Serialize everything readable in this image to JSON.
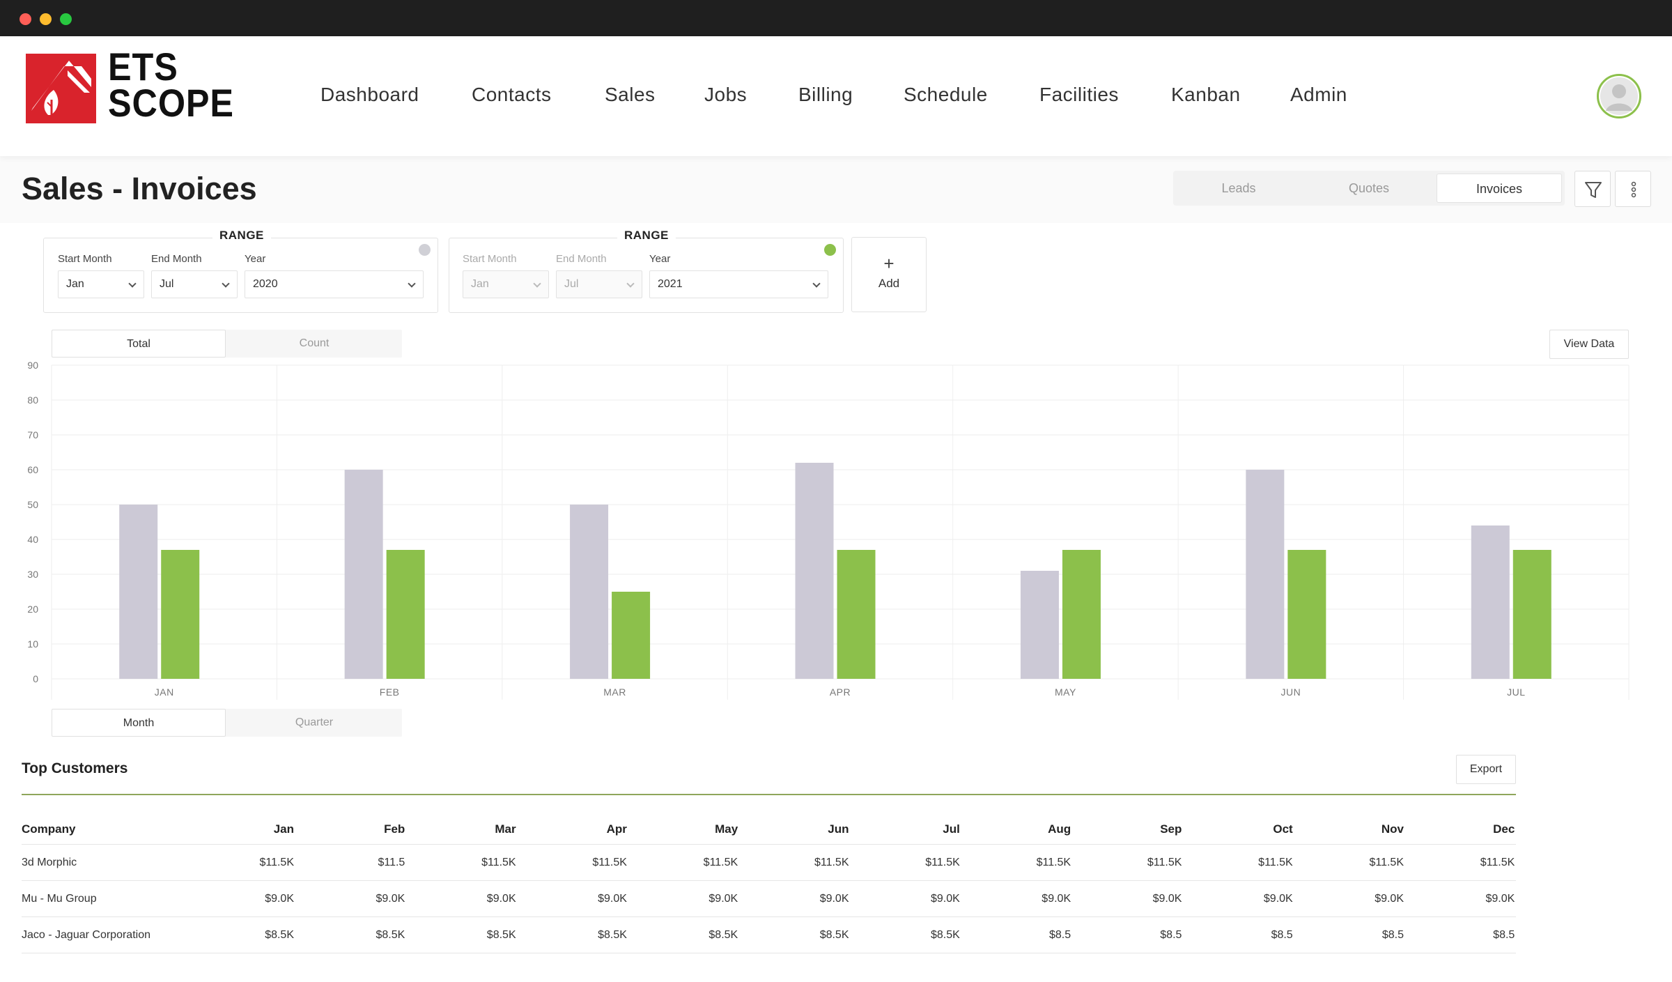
{
  "brand": {
    "line1": "ETS",
    "line2": "SCOPE",
    "red": "#d9232c",
    "green": "#8cc04b",
    "gray_bar": "#ccc9d6"
  },
  "nav": [
    "Dashboard",
    "Contacts",
    "Sales",
    "Jobs",
    "Billing",
    "Schedule",
    "Facilities",
    "Kanban",
    "Admin"
  ],
  "page": {
    "title": "Sales - Invoices",
    "tabs": [
      "Leads",
      "Quotes",
      "Invoices"
    ],
    "active_tab": "Invoices"
  },
  "ranges": [
    {
      "title": "RANGE",
      "start_label": "Start Month",
      "end_label": "End Month",
      "year_label": "Year",
      "start": "Jan",
      "end": "Jul",
      "year": "2020",
      "status": "gray"
    },
    {
      "title": "RANGE",
      "start_label": "Start Month",
      "end_label": "End Month",
      "year_label": "Year",
      "start": "Jan",
      "end": "Jul",
      "year": "2021",
      "status": "green"
    }
  ],
  "add_label": "Add",
  "metric_toggle": {
    "options": [
      "Total",
      "Count"
    ],
    "active": "Total"
  },
  "period_toggle": {
    "options": [
      "Month",
      "Quarter"
    ],
    "active": "Month"
  },
  "view_data_label": "View Data",
  "chart_data": {
    "type": "bar",
    "categories": [
      "JAN",
      "FEB",
      "MAR",
      "APR",
      "MAY",
      "JUN",
      "JUL"
    ],
    "series": [
      {
        "values": [
          50,
          60,
          50,
          62,
          31,
          60,
          44
        ],
        "color": "#ccc9d6"
      },
      {
        "values": [
          37,
          37,
          25,
          37,
          37,
          37,
          37
        ],
        "color": "#8cc04b"
      }
    ],
    "yticks": [
      0,
      10,
      20,
      30,
      40,
      50,
      60,
      70,
      80,
      90
    ],
    "ylim": [
      0,
      90
    ],
    "grid": true
  },
  "customers": {
    "title": "Top Customers",
    "export_label": "Export",
    "columns": [
      "Company",
      "Jan",
      "Feb",
      "Mar",
      "Apr",
      "May",
      "Jun",
      "Jul",
      "Aug",
      "Sep",
      "Oct",
      "Nov",
      "Dec"
    ],
    "rows": [
      [
        "3d Morphic",
        "$11.5K",
        "$11.5",
        "$11.5K",
        "$11.5K",
        "$11.5K",
        "$11.5K",
        "$11.5K",
        "$11.5K",
        "$11.5K",
        "$11.5K",
        "$11.5K",
        "$11.5K"
      ],
      [
        "Mu - Mu Group",
        "$9.0K",
        "$9.0K",
        "$9.0K",
        "$9.0K",
        "$9.0K",
        "$9.0K",
        "$9.0K",
        "$9.0K",
        "$9.0K",
        "$9.0K",
        "$9.0K",
        "$9.0K"
      ],
      [
        "Jaco - Jaguar Corporation",
        "$8.5K",
        "$8.5K",
        "$8.5K",
        "$8.5K",
        "$8.5K",
        "$8.5K",
        "$8.5K",
        "$8.5",
        "$8.5",
        "$8.5",
        "$8.5",
        "$8.5"
      ]
    ]
  }
}
